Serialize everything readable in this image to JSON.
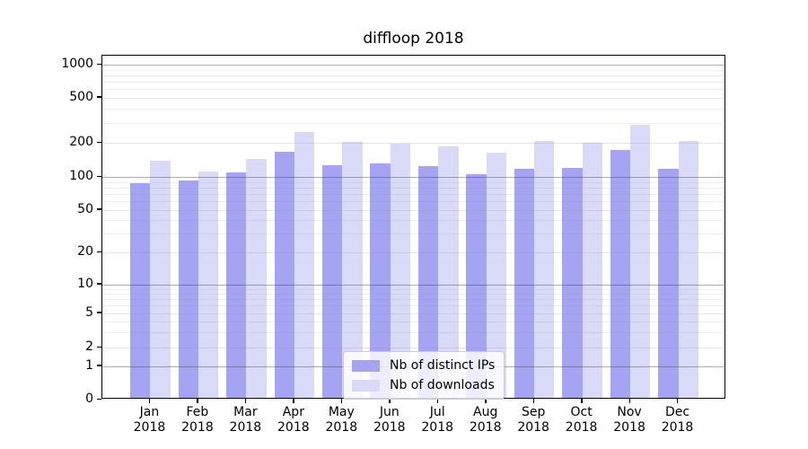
{
  "title": "diffloop 2018",
  "legend": {
    "items": [
      {
        "label": "Nb of distinct IPs",
        "color": "#a4a4f2"
      },
      {
        "label": "Nb of downloads",
        "color": "#d9d9f8"
      }
    ]
  },
  "chart_data": {
    "type": "bar",
    "title": "diffloop 2018",
    "categories": [
      "Jan 2018",
      "Feb 2018",
      "Mar 2018",
      "Apr 2018",
      "May 2018",
      "Jun 2018",
      "Jul 2018",
      "Aug 2018",
      "Sep 2018",
      "Oct 2018",
      "Nov 2018",
      "Dec 2018"
    ],
    "month_labels": [
      "Jan",
      "Feb",
      "Mar",
      "Apr",
      "May",
      "Jun",
      "Jul",
      "Aug",
      "Sep",
      "Oct",
      "Nov",
      "Dec"
    ],
    "year": "2018",
    "series": [
      {
        "name": "Nb of distinct IPs",
        "color": "#a4a4f2",
        "values": [
          85,
          89,
          107,
          163,
          124,
          128,
          120,
          103,
          115,
          117,
          167,
          115
        ]
      },
      {
        "name": "Nb of downloads",
        "color": "#d9d9f8",
        "values": [
          134,
          108,
          140,
          242,
          198,
          191,
          180,
          158,
          200,
          194,
          280,
          202
        ]
      }
    ],
    "xlabel": "",
    "ylabel": "",
    "yscale": "symlog",
    "yticks": [
      0,
      1,
      2,
      5,
      10,
      20,
      50,
      100,
      200,
      500,
      1000
    ],
    "ylim": [
      0,
      1300
    ],
    "grid": true,
    "legend_position": "lower center-right inside plot"
  }
}
